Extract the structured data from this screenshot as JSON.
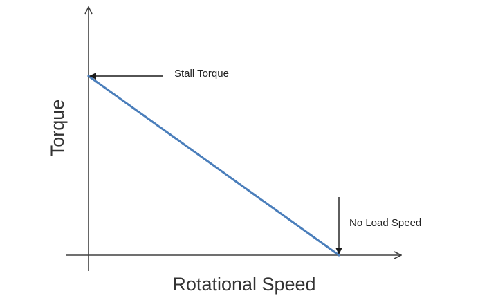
{
  "chart_data": {
    "type": "line",
    "title": "",
    "xlabel": "Rotational Speed",
    "ylabel": "Torque",
    "xlim": [
      0,
      1
    ],
    "ylim": [
      0,
      1.2
    ],
    "grid": false,
    "series": [
      {
        "x": [
          0,
          1
        ],
        "values": [
          1,
          0
        ],
        "color": "#4a7ebb"
      }
    ],
    "annotations": [
      {
        "text": "Stall Torque",
        "x": 0,
        "y": 1
      },
      {
        "text": "No Load Speed",
        "x": 1,
        "y": 0
      }
    ]
  }
}
